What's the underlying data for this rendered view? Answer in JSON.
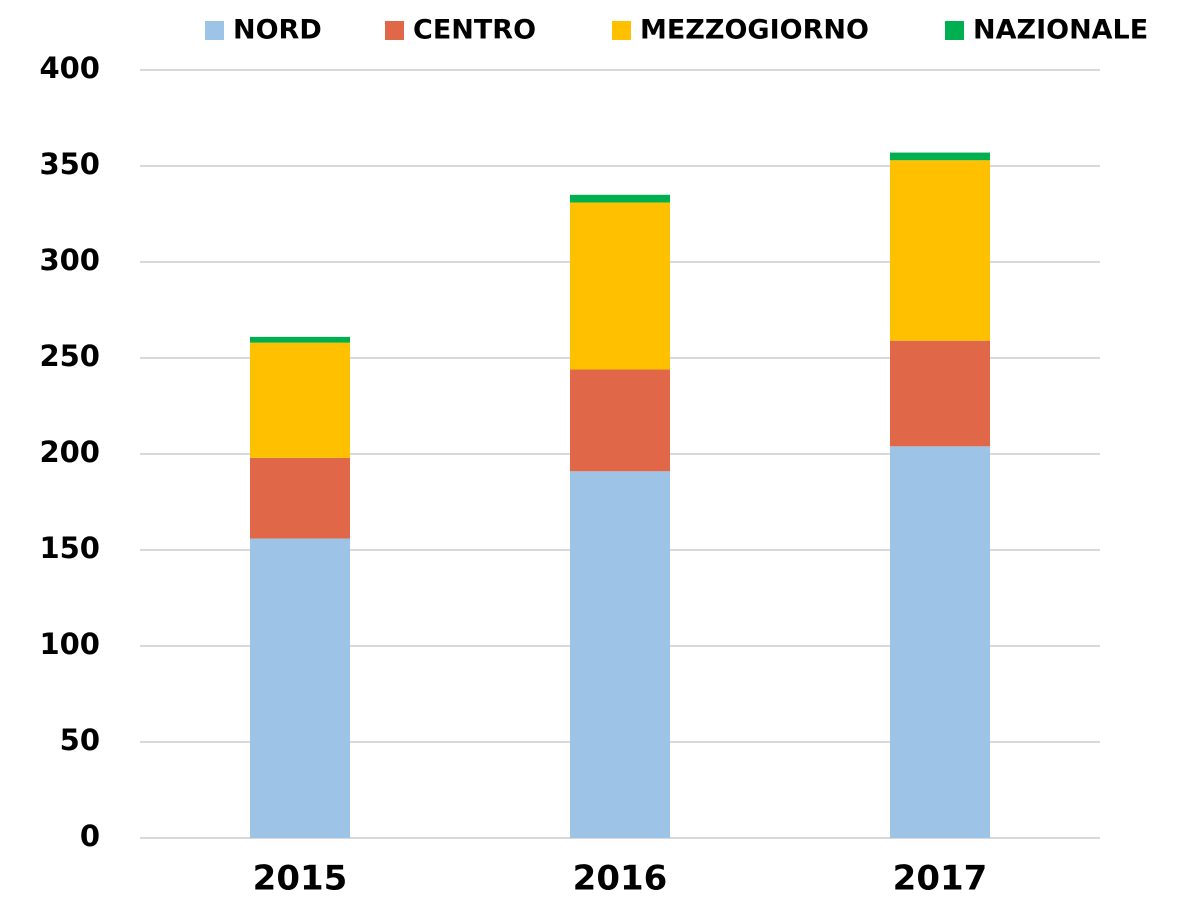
{
  "chart_data": {
    "type": "bar",
    "stacked": true,
    "categories": [
      "2015",
      "2016",
      "2017"
    ],
    "series": [
      {
        "name": "NORD",
        "color": "#9dc3e6",
        "values": [
          156,
          191,
          204
        ]
      },
      {
        "name": "CENTRO",
        "color": "#e06848",
        "values": [
          42,
          53,
          55
        ]
      },
      {
        "name": "MEZZOGIORNO",
        "color": "#ffc000",
        "values": [
          60,
          87,
          94
        ]
      },
      {
        "name": "NAZIONALE",
        "color": "#00b050",
        "values": [
          3,
          4,
          4
        ]
      }
    ],
    "ylim": [
      0,
      400
    ],
    "yticks": [
      0,
      50,
      100,
      150,
      200,
      250,
      300,
      350,
      400
    ],
    "grid": true,
    "legend": "top"
  }
}
